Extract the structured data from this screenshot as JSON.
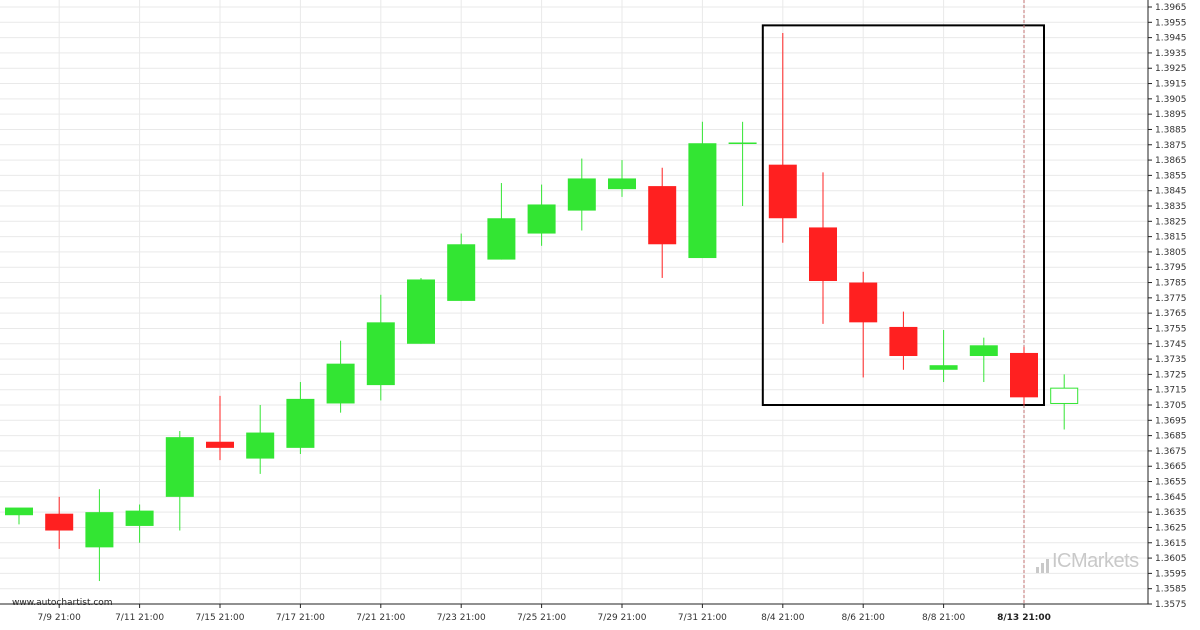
{
  "source_label": "www.autochartist.com",
  "brand": {
    "text": "ICMarkets",
    "icon": "bar-chart-icon"
  },
  "colors": {
    "up": "#33e533",
    "down": "#ff2020",
    "grid": "#e9e9e9",
    "axis": "#222222",
    "marker": "#c07070",
    "pattern_box": "#000000"
  },
  "chart_data": {
    "type": "candlestick",
    "ylim": [
      1.3575,
      1.3965
    ],
    "y_ticks": [
      "1.3965",
      "1.3955",
      "1.3945",
      "1.3935",
      "1.3925",
      "1.3915",
      "1.3905",
      "1.3895",
      "1.3885",
      "1.3875",
      "1.3865",
      "1.3855",
      "1.3845",
      "1.3835",
      "1.3825",
      "1.3815",
      "1.3805",
      "1.3795",
      "1.3785",
      "1.3775",
      "1.3765",
      "1.3755",
      "1.3745",
      "1.3735",
      "1.3725",
      "1.3715",
      "1.3705",
      "1.3695",
      "1.3685",
      "1.3675",
      "1.3665",
      "1.3655",
      "1.3645",
      "1.3635",
      "1.3625",
      "1.3615",
      "1.3605",
      "1.3595",
      "1.3585",
      "1.3575"
    ],
    "x_labels": [
      {
        "label": "7/9 21:00",
        "index": 1
      },
      {
        "label": "7/11 21:00",
        "index": 3
      },
      {
        "label": "7/15 21:00",
        "index": 5
      },
      {
        "label": "7/17 21:00",
        "index": 7
      },
      {
        "label": "7/21 21:00",
        "index": 9
      },
      {
        "label": "7/23 21:00",
        "index": 11
      },
      {
        "label": "7/25 21:00",
        "index": 13
      },
      {
        "label": "7/29 21:00",
        "index": 15
      },
      {
        "label": "7/31 21:00",
        "index": 17
      },
      {
        "label": "8/4 21:00",
        "index": 19
      },
      {
        "label": "8/6 21:00",
        "index": 21
      },
      {
        "label": "8/8 21:00",
        "index": 23
      },
      {
        "label": "8/13 21:00",
        "index": 25,
        "bold": true
      }
    ],
    "candles": [
      {
        "o": 1.3633,
        "h": 1.3637,
        "l": 1.3627,
        "c": 1.3638
      },
      {
        "o": 1.3634,
        "h": 1.3645,
        "l": 1.3611,
        "c": 1.3623
      },
      {
        "o": 1.3612,
        "h": 1.365,
        "l": 1.359,
        "c": 1.3635
      },
      {
        "o": 1.3626,
        "h": 1.364,
        "l": 1.3615,
        "c": 1.3636
      },
      {
        "o": 1.3645,
        "h": 1.3688,
        "l": 1.3623,
        "c": 1.3684
      },
      {
        "o": 1.3681,
        "h": 1.3711,
        "l": 1.3669,
        "c": 1.3677
      },
      {
        "o": 1.367,
        "h": 1.3705,
        "l": 1.366,
        "c": 1.3687
      },
      {
        "o": 1.3677,
        "h": 1.372,
        "l": 1.3673,
        "c": 1.3709
      },
      {
        "o": 1.3706,
        "h": 1.3747,
        "l": 1.37,
        "c": 1.3732
      },
      {
        "o": 1.3718,
        "h": 1.3777,
        "l": 1.3708,
        "c": 1.3759
      },
      {
        "o": 1.3745,
        "h": 1.3788,
        "l": 1.3745,
        "c": 1.3787
      },
      {
        "o": 1.3773,
        "h": 1.3817,
        "l": 1.3773,
        "c": 1.381
      },
      {
        "o": 1.38,
        "h": 1.385,
        "l": 1.38,
        "c": 1.3827
      },
      {
        "o": 1.3817,
        "h": 1.3849,
        "l": 1.3809,
        "c": 1.3836
      },
      {
        "o": 1.3832,
        "h": 1.3866,
        "l": 1.3819,
        "c": 1.3853
      },
      {
        "o": 1.3846,
        "h": 1.3865,
        "l": 1.3841,
        "c": 1.3853
      },
      {
        "o": 1.3848,
        "h": 1.386,
        "l": 1.3788,
        "c": 1.381
      },
      {
        "o": 1.3801,
        "h": 1.389,
        "l": 1.3801,
        "c": 1.3876
      },
      {
        "o": 1.3876,
        "h": 1.389,
        "l": 1.3835,
        "c": 1.3876
      },
      {
        "o": 1.3862,
        "h": 1.3948,
        "l": 1.3811,
        "c": 1.3827
      },
      {
        "o": 1.3821,
        "h": 1.3857,
        "l": 1.3758,
        "c": 1.3786
      },
      {
        "o": 1.3785,
        "h": 1.3792,
        "l": 1.3723,
        "c": 1.3759
      },
      {
        "o": 1.3756,
        "h": 1.3766,
        "l": 1.3728,
        "c": 1.3737
      },
      {
        "o": 1.3728,
        "h": 1.3754,
        "l": 1.372,
        "c": 1.3731
      },
      {
        "o": 1.3737,
        "h": 1.3749,
        "l": 1.372,
        "c": 1.3744
      },
      {
        "o": 1.3739,
        "h": 1.3743,
        "l": 1.3705,
        "c": 1.371
      },
      {
        "o": 1.3706,
        "h": 1.3725,
        "l": 1.3689,
        "c": 1.3716,
        "hollow": true
      }
    ],
    "pattern_box": {
      "start_index": 19,
      "end_index": 25,
      "top": 1.3953,
      "bottom": 1.3705
    },
    "marker_index": 25
  }
}
